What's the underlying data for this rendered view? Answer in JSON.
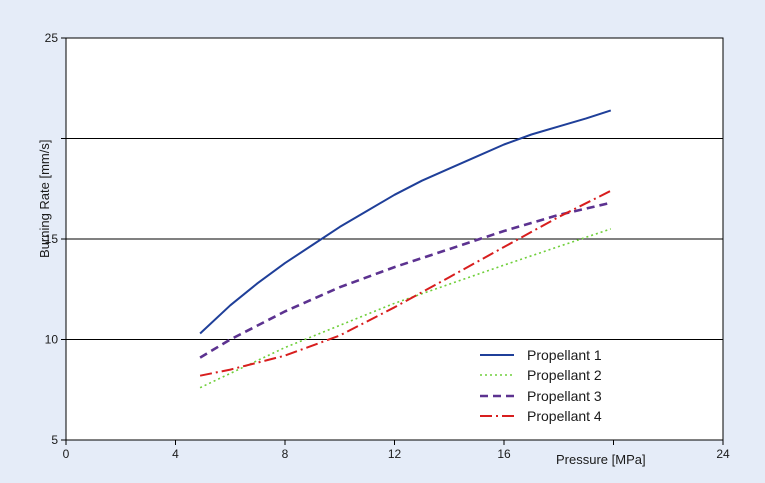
{
  "chart_data": {
    "type": "line",
    "title": "",
    "xlabel": "Pressure [MPa]",
    "ylabel": "Burning Rate [mm/s]",
    "xlim": [
      0,
      24
    ],
    "ylim": [
      5,
      25
    ],
    "xticks": [
      0,
      4,
      8,
      12,
      16,
      20,
      24
    ],
    "yticks": [
      5,
      10,
      15,
      20,
      25
    ],
    "x_tick_labels": [
      "0",
      "4",
      "8",
      "12",
      "16",
      "",
      "24"
    ],
    "y_tick_labels": [
      "5",
      "10",
      "15",
      "",
      "25"
    ],
    "grid": "horizontal",
    "legend_position": "bottom-right",
    "series": [
      {
        "name": "Propellant 1",
        "color": "#1f3f99",
        "style": "solid",
        "x": [
          4.9,
          6,
          7,
          8,
          9,
          10,
          11,
          12,
          13,
          14,
          15,
          16,
          17,
          18,
          19,
          19.9
        ],
        "y": [
          10.3,
          11.7,
          12.8,
          13.8,
          14.7,
          15.6,
          16.4,
          17.2,
          17.9,
          18.5,
          19.1,
          19.7,
          20.2,
          20.6,
          21.0,
          21.4
        ]
      },
      {
        "name": "Propellant 2",
        "color": "#6fcf3a",
        "style": "dotted",
        "x": [
          4.9,
          8,
          12,
          16,
          19.9
        ],
        "y": [
          7.6,
          9.6,
          11.8,
          13.7,
          15.5
        ]
      },
      {
        "name": "Propellant 3",
        "color": "#5c3290",
        "style": "dashed",
        "x": [
          4.9,
          6,
          8,
          10,
          12,
          14,
          16,
          18,
          19.9
        ],
        "y": [
          9.1,
          10.0,
          11.4,
          12.6,
          13.6,
          14.5,
          15.4,
          16.2,
          16.8
        ]
      },
      {
        "name": "Propellant 4",
        "color": "#d81e1e",
        "style": "dashdot",
        "x": [
          4.9,
          6,
          8,
          10,
          12,
          14,
          16,
          18,
          19.9
        ],
        "y": [
          8.2,
          8.5,
          9.2,
          10.2,
          11.6,
          13.1,
          14.6,
          16.1,
          17.4
        ]
      }
    ]
  }
}
